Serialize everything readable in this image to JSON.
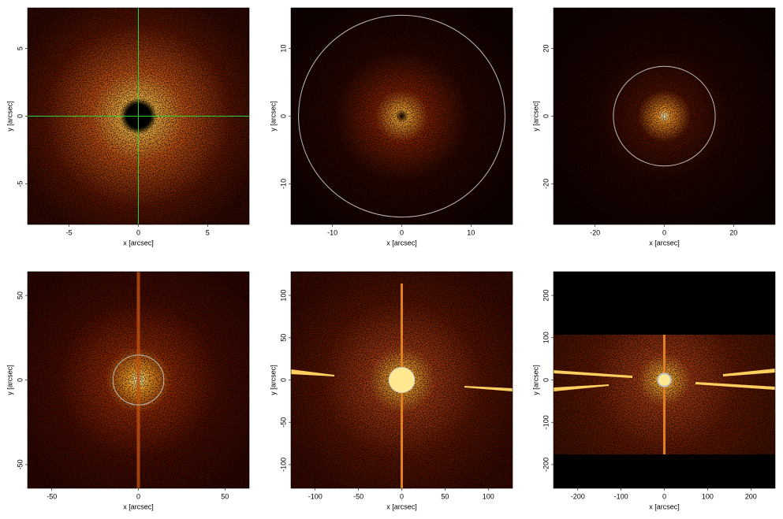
{
  "chart_data": [
    {
      "type": "image",
      "xlabel": "x [arcsec]",
      "ylabel": "y [arcsec]",
      "xlim": [
        -8,
        8
      ],
      "ylim": [
        -8,
        8
      ],
      "xticks": [
        -5,
        0,
        5
      ],
      "yticks": [
        -5,
        0,
        5
      ]
    },
    {
      "type": "image",
      "xlabel": "x [arcsec]",
      "ylabel": "y [arcsec]",
      "xlim": [
        -16,
        16
      ],
      "ylim": [
        -16,
        16
      ],
      "xticks": [
        -10,
        0,
        10
      ],
      "yticks": [
        -10,
        0,
        10
      ]
    },
    {
      "type": "image",
      "xlabel": "x [arcsec]",
      "ylabel": "y [arcsec]",
      "xlim": [
        -32,
        32
      ],
      "ylim": [
        -32,
        32
      ],
      "xticks": [
        -20,
        0,
        20
      ],
      "yticks": [
        -20,
        0,
        20
      ]
    },
    {
      "type": "image",
      "xlabel": "x [arcsec]",
      "ylabel": "y [arcsec]",
      "xlim": [
        -64,
        64
      ],
      "ylim": [
        -64,
        64
      ],
      "xticks": [
        -50,
        0,
        50
      ],
      "yticks": [
        -50,
        0,
        50
      ]
    },
    {
      "type": "image",
      "xlabel": "x [arcsec]",
      "ylabel": "y [arcsec]",
      "xlim": [
        -128,
        128
      ],
      "ylim": [
        -128,
        128
      ],
      "xticks": [
        -100,
        -50,
        0,
        50,
        100
      ],
      "yticks": [
        -100,
        -50,
        0,
        50,
        100
      ]
    },
    {
      "type": "image",
      "xlabel": "x [arcsec]",
      "ylabel": "y [arcsec]",
      "xlim": [
        -256,
        256
      ],
      "ylim": [
        -256,
        256
      ],
      "xticks": [
        -200,
        -100,
        0,
        100,
        200
      ],
      "yticks": [
        -200,
        -100,
        0,
        100,
        200
      ]
    }
  ]
}
